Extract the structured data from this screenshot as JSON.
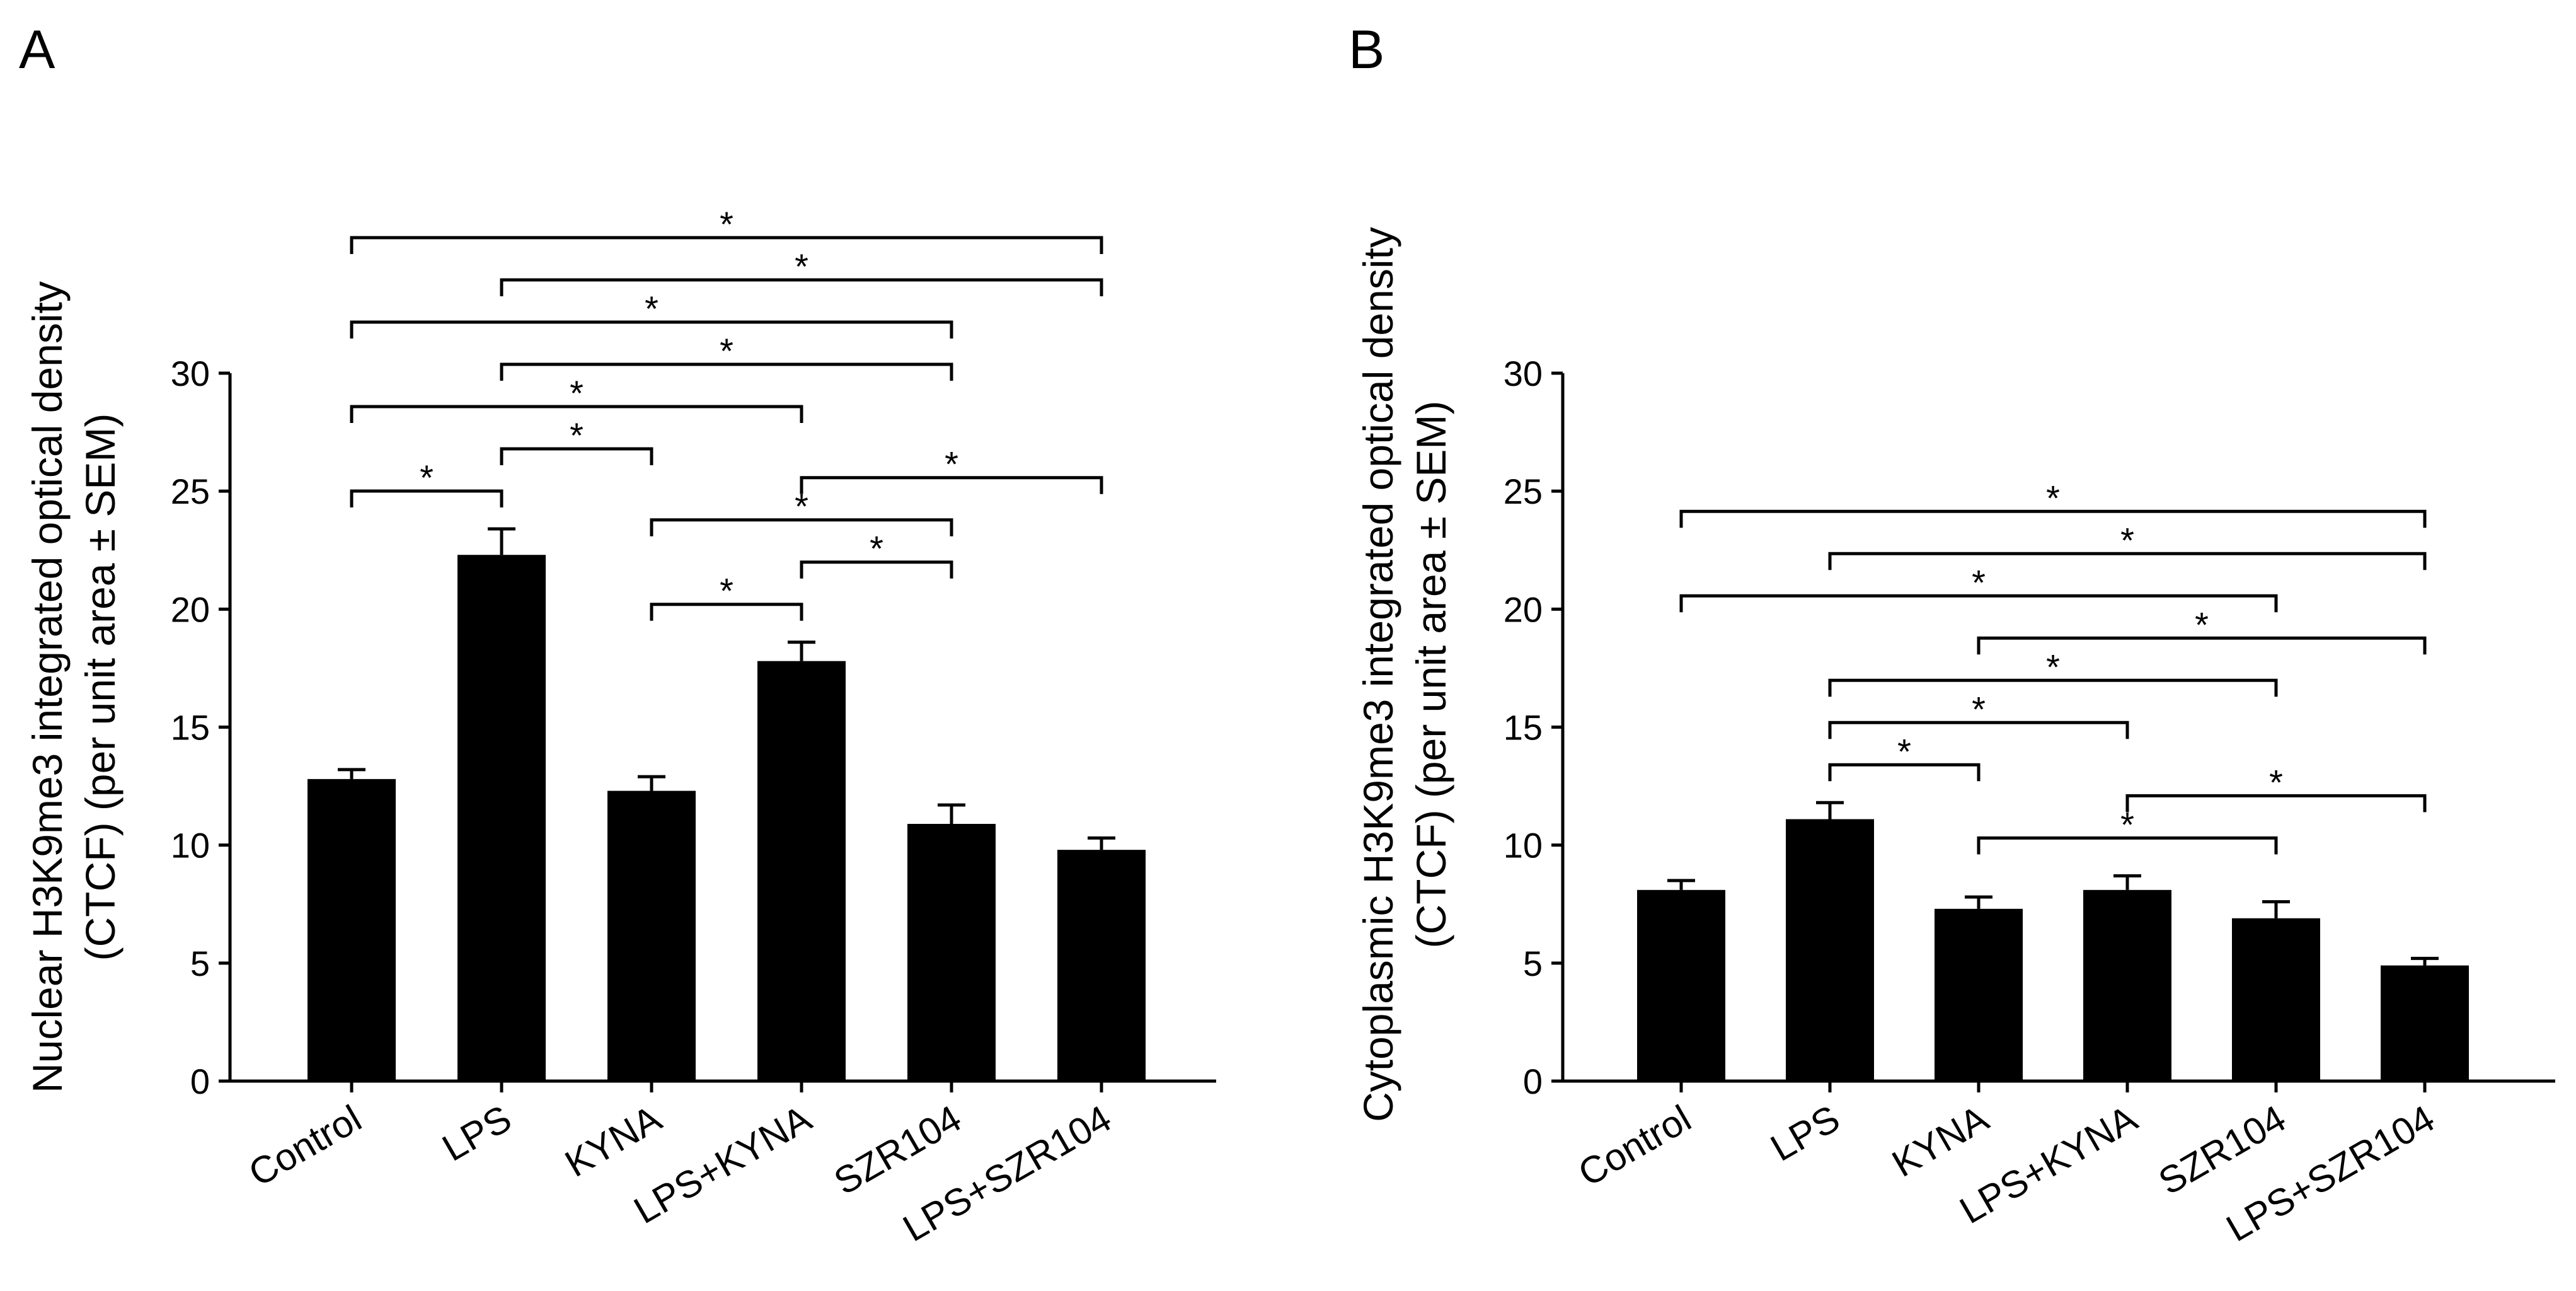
{
  "chart_data": [
    {
      "panel": "A",
      "type": "bar",
      "categories": [
        "Control",
        "LPS",
        "KYNA",
        "LPS+KYNA",
        "SZR104",
        "LPS+SZR104"
      ],
      "values": [
        12.8,
        22.3,
        12.3,
        17.8,
        10.9,
        9.8
      ],
      "errors": [
        0.4,
        1.1,
        0.6,
        0.8,
        0.8,
        0.5
      ],
      "ylabel_line1": "Nuclear H3K9me3 integrated optical density",
      "ylabel_line2": "(CTCF) (per unit area ± SEM)",
      "xlabel": "",
      "ylim": [
        0,
        30
      ],
      "yticks": [
        "0",
        "5",
        "10",
        "15",
        "20",
        "25",
        "30"
      ],
      "significance_label": "*",
      "significance": [
        [
          0,
          1
        ],
        [
          0,
          3
        ],
        [
          0,
          4
        ],
        [
          0,
          5
        ],
        [
          1,
          2
        ],
        [
          1,
          4
        ],
        [
          1,
          5
        ],
        [
          2,
          3
        ],
        [
          2,
          4
        ],
        [
          3,
          4
        ],
        [
          3,
          5
        ]
      ]
    },
    {
      "panel": "B",
      "type": "bar",
      "categories": [
        "Control",
        "LPS",
        "KYNA",
        "LPS+KYNA",
        "SZR104",
        "LPS+SZR104"
      ],
      "values": [
        8.1,
        11.1,
        7.3,
        8.1,
        6.9,
        4.9
      ],
      "errors": [
        0.4,
        0.7,
        0.5,
        0.6,
        0.7,
        0.3
      ],
      "ylabel_line1": "Cytoplasmic H3K9me3 integrated optical density",
      "ylabel_line2": "(CTCF) (per unit area ± SEM)",
      "xlabel": "",
      "ylim": [
        0,
        30
      ],
      "yticks": [
        "0",
        "5",
        "10",
        "15",
        "20",
        "25",
        "30"
      ],
      "significance_label": "*",
      "significance": [
        [
          0,
          4
        ],
        [
          0,
          5
        ],
        [
          1,
          2
        ],
        [
          1,
          3
        ],
        [
          1,
          4
        ],
        [
          1,
          5
        ],
        [
          2,
          4
        ],
        [
          2,
          5
        ],
        [
          3,
          5
        ]
      ]
    }
  ],
  "colors": {
    "bar": "#000000",
    "axis": "#000000",
    "background": "#ffffff"
  }
}
